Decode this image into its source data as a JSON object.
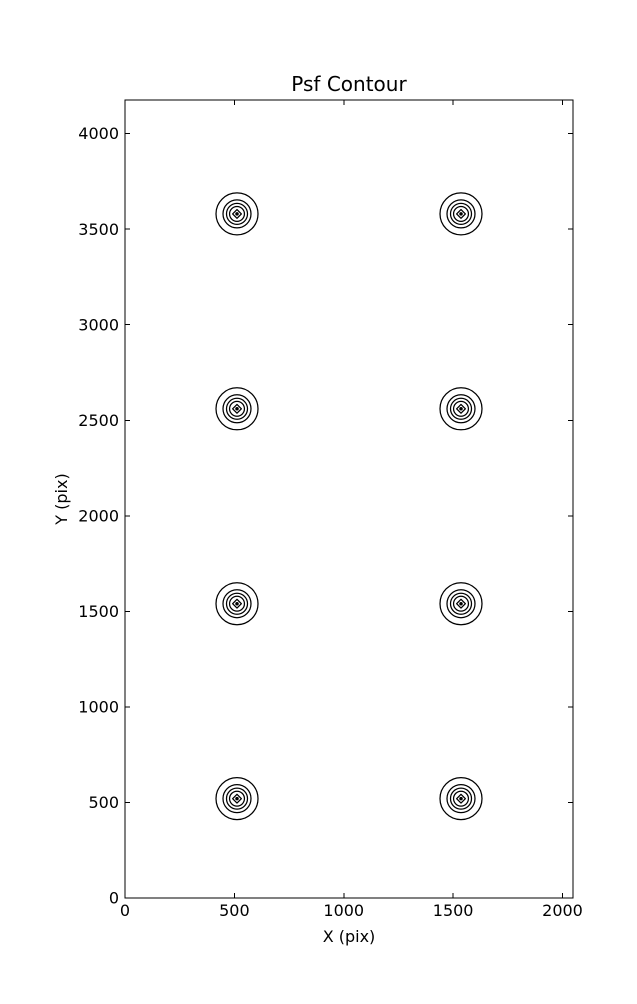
{
  "chart_data": {
    "type": "contour",
    "title": "Psf Contour",
    "xlabel": "X (pix)",
    "ylabel": "Y (pix)",
    "xlim": [
      0,
      2048
    ],
    "ylim": [
      0,
      4176
    ],
    "xticks": [
      0,
      500,
      1000,
      1500,
      2000
    ],
    "yticks": [
      0,
      500,
      1000,
      1500,
      2000,
      2500,
      3000,
      3500,
      4000
    ],
    "grid": false,
    "legend": null,
    "frame": true,
    "tick_direction": "in",
    "colors": {
      "line": "#000000",
      "background": "#ffffff"
    },
    "psf_blobs": {
      "count": 8,
      "layout": "2 columns x 4 rows",
      "grid_x_pix": [
        512,
        1536
      ],
      "grid_y_pix": [
        520,
        1540,
        2560,
        3580
      ],
      "ring_radii_pix": [
        96,
        64,
        48,
        34
      ],
      "inner_diamond_radius_pix": 20,
      "center_dot_radius_pix": 8
    }
  }
}
